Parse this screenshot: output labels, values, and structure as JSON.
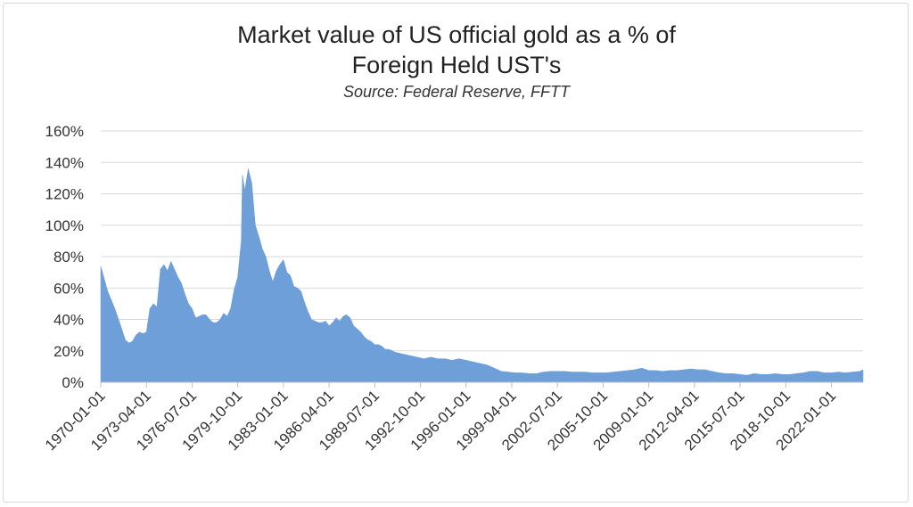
{
  "chart_data": {
    "type": "area",
    "title_line1": "Market value of US official gold as a % of",
    "title_line2": "Foreign Held UST's",
    "subtitle": "Source:  Federal Reserve, FFTT",
    "xlabel": "",
    "ylabel": "",
    "ylim": [
      0,
      160
    ],
    "y_ticks": [
      "0%",
      "20%",
      "40%",
      "60%",
      "80%",
      "100%",
      "120%",
      "140%",
      "160%"
    ],
    "x_ticks": [
      "1970-01-01",
      "1973-04-01",
      "1976-07-01",
      "1979-10-01",
      "1983-01-01",
      "1986-04-01",
      "1989-07-01",
      "1992-10-01",
      "1996-01-01",
      "1999-04-01",
      "2002-07-01",
      "2005-10-01",
      "2009-01-01",
      "2012-04-01",
      "2015-07-01",
      "2018-10-01",
      "2022-01-01"
    ],
    "grid": true,
    "legend": "none",
    "fill_color": "#6f9fd8",
    "series": [
      {
        "points": [
          [
            "1970-01-01",
            74
          ],
          [
            "1970-07-01",
            58
          ],
          [
            "1971-01-01",
            47
          ],
          [
            "1971-07-01",
            34
          ],
          [
            "1971-10-01",
            27
          ],
          [
            "1972-01-01",
            25
          ],
          [
            "1972-04-01",
            26
          ],
          [
            "1972-07-01",
            30
          ],
          [
            "1972-10-01",
            32
          ],
          [
            "1973-01-01",
            31
          ],
          [
            "1973-04-01",
            32
          ],
          [
            "1973-07-01",
            47
          ],
          [
            "1973-10-01",
            50
          ],
          [
            "1974-01-01",
            48
          ],
          [
            "1974-04-01",
            72
          ],
          [
            "1974-07-01",
            75
          ],
          [
            "1974-10-01",
            71
          ],
          [
            "1975-01-01",
            77
          ],
          [
            "1975-04-01",
            72
          ],
          [
            "1975-07-01",
            67
          ],
          [
            "1975-10-01",
            63
          ],
          [
            "1976-01-01",
            56
          ],
          [
            "1976-04-01",
            50
          ],
          [
            "1976-07-01",
            47
          ],
          [
            "1976-10-01",
            41
          ],
          [
            "1977-01-01",
            42
          ],
          [
            "1977-04-01",
            43
          ],
          [
            "1977-07-01",
            43
          ],
          [
            "1977-10-01",
            40
          ],
          [
            "1978-01-01",
            38
          ],
          [
            "1978-04-01",
            38
          ],
          [
            "1978-07-01",
            40
          ],
          [
            "1978-10-01",
            44
          ],
          [
            "1979-01-01",
            42
          ],
          [
            "1979-04-01",
            47
          ],
          [
            "1979-07-01",
            59
          ],
          [
            "1979-10-01",
            67
          ],
          [
            "1980-01-01",
            90
          ],
          [
            "1980-02-01",
            132
          ],
          [
            "1980-04-01",
            122
          ],
          [
            "1980-07-01",
            136
          ],
          [
            "1980-10-01",
            127
          ],
          [
            "1981-01-01",
            100
          ],
          [
            "1981-04-01",
            93
          ],
          [
            "1981-07-01",
            85
          ],
          [
            "1981-10-01",
            80
          ],
          [
            "1982-01-01",
            71
          ],
          [
            "1982-04-01",
            64
          ],
          [
            "1982-07-01",
            71
          ],
          [
            "1982-10-01",
            75
          ],
          [
            "1983-01-01",
            78
          ],
          [
            "1983-04-01",
            70
          ],
          [
            "1983-07-01",
            68
          ],
          [
            "1983-10-01",
            61
          ],
          [
            "1984-01-01",
            60
          ],
          [
            "1984-04-01",
            58
          ],
          [
            "1984-07-01",
            51
          ],
          [
            "1984-10-01",
            45
          ],
          [
            "1985-01-01",
            40
          ],
          [
            "1985-04-01",
            39
          ],
          [
            "1985-07-01",
            38
          ],
          [
            "1985-10-01",
            38
          ],
          [
            "1986-01-01",
            39
          ],
          [
            "1986-04-01",
            36
          ],
          [
            "1986-07-01",
            38
          ],
          [
            "1986-10-01",
            41
          ],
          [
            "1987-01-01",
            39
          ],
          [
            "1987-04-01",
            42
          ],
          [
            "1987-07-01",
            43
          ],
          [
            "1987-10-01",
            41
          ],
          [
            "1988-01-01",
            36
          ],
          [
            "1988-04-01",
            34
          ],
          [
            "1988-07-01",
            32
          ],
          [
            "1988-10-01",
            29
          ],
          [
            "1989-01-01",
            27
          ],
          [
            "1989-04-01",
            26
          ],
          [
            "1989-07-01",
            24
          ],
          [
            "1989-10-01",
            24
          ],
          [
            "1990-01-01",
            23
          ],
          [
            "1990-04-01",
            21
          ],
          [
            "1990-07-01",
            21
          ],
          [
            "1990-10-01",
            20
          ],
          [
            "1991-01-01",
            19
          ],
          [
            "1991-07-01",
            18
          ],
          [
            "1992-01-01",
            17
          ],
          [
            "1992-07-01",
            16
          ],
          [
            "1993-01-01",
            15
          ],
          [
            "1993-07-01",
            16
          ],
          [
            "1994-01-01",
            15
          ],
          [
            "1994-07-01",
            15
          ],
          [
            "1995-01-01",
            14
          ],
          [
            "1995-07-01",
            15
          ],
          [
            "1996-01-01",
            14
          ],
          [
            "1996-07-01",
            13
          ],
          [
            "1997-01-01",
            12
          ],
          [
            "1997-07-01",
            11
          ],
          [
            "1998-01-01",
            9
          ],
          [
            "1998-07-01",
            7
          ],
          [
            "1999-01-01",
            6.5
          ],
          [
            "1999-07-01",
            6
          ],
          [
            "2000-01-01",
            6
          ],
          [
            "2000-07-01",
            5.5
          ],
          [
            "2001-01-01",
            5.5
          ],
          [
            "2001-07-01",
            6.5
          ],
          [
            "2002-01-01",
            7
          ],
          [
            "2002-07-01",
            7
          ],
          [
            "2003-01-01",
            7
          ],
          [
            "2003-07-01",
            6.5
          ],
          [
            "2004-01-01",
            6.5
          ],
          [
            "2004-07-01",
            6.5
          ],
          [
            "2005-01-01",
            6
          ],
          [
            "2005-07-01",
            6
          ],
          [
            "2006-01-01",
            6
          ],
          [
            "2006-07-01",
            6.5
          ],
          [
            "2007-01-01",
            7
          ],
          [
            "2007-07-01",
            7.5
          ],
          [
            "2008-01-01",
            8
          ],
          [
            "2008-07-01",
            9
          ],
          [
            "2009-01-01",
            7.5
          ],
          [
            "2009-07-01",
            7.5
          ],
          [
            "2010-01-01",
            7
          ],
          [
            "2010-07-01",
            7.5
          ],
          [
            "2011-01-01",
            7.5
          ],
          [
            "2011-07-01",
            8
          ],
          [
            "2012-01-01",
            8.5
          ],
          [
            "2012-07-01",
            8
          ],
          [
            "2013-01-01",
            8
          ],
          [
            "2013-07-01",
            7
          ],
          [
            "2014-01-01",
            6
          ],
          [
            "2014-07-01",
            5.5
          ],
          [
            "2015-01-01",
            5.5
          ],
          [
            "2015-07-01",
            5
          ],
          [
            "2016-01-01",
            4.5
          ],
          [
            "2016-07-01",
            5.5
          ],
          [
            "2017-01-01",
            5
          ],
          [
            "2017-07-01",
            5
          ],
          [
            "2018-01-01",
            5.5
          ],
          [
            "2018-07-01",
            5
          ],
          [
            "2019-01-01",
            5
          ],
          [
            "2019-07-01",
            5.5
          ],
          [
            "2020-01-01",
            6
          ],
          [
            "2020-07-01",
            7
          ],
          [
            "2021-01-01",
            7
          ],
          [
            "2021-07-01",
            6
          ],
          [
            "2022-01-01",
            6
          ],
          [
            "2022-07-01",
            6.5
          ],
          [
            "2023-01-01",
            6
          ],
          [
            "2023-07-01",
            6.5
          ],
          [
            "2024-01-01",
            7
          ],
          [
            "2024-04-01",
            8
          ]
        ]
      }
    ]
  }
}
